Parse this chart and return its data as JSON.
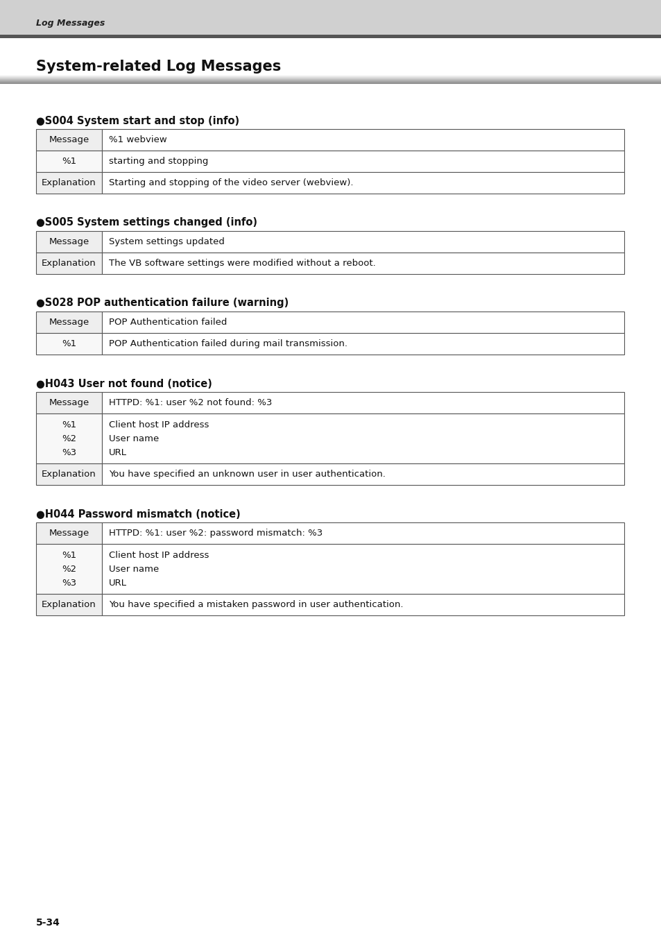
{
  "page_bg": "#ffffff",
  "header_bg": "#d0d0d0",
  "header_bar_color": "#555555",
  "header_text": "Log Messages",
  "page_title": "System-related Log Messages",
  "footer_text": "5-34",
  "sections": [
    {
      "heading": "●S004 System start and stop (info)",
      "rows": [
        {
          "col1": "Message",
          "col2": "%1 webview",
          "type": "label"
        },
        {
          "col1": "%1",
          "col2": "starting and stopping",
          "type": "data"
        },
        {
          "col1": "Explanation",
          "col2": "Starting and stopping of the video server (webview).",
          "type": "label"
        }
      ]
    },
    {
      "heading": "●S005 System settings changed (info)",
      "rows": [
        {
          "col1": "Message",
          "col2": "System settings updated",
          "type": "label"
        },
        {
          "col1": "Explanation",
          "col2": "The VB software settings were modified without a reboot.",
          "type": "label"
        }
      ]
    },
    {
      "heading": "●S028 POP authentication failure (warning)",
      "rows": [
        {
          "col1": "Message",
          "col2": "POP Authentication failed",
          "type": "label"
        },
        {
          "col1": "%1",
          "col2": "POP Authentication failed during mail transmission.",
          "type": "data"
        }
      ]
    },
    {
      "heading": "●H043 User not found (notice)",
      "rows": [
        {
          "col1": "Message",
          "col2": "HTTPD: %1: user %2 not found: %3",
          "type": "label"
        },
        {
          "col1": "%1\n%2\n%3",
          "col2": "Client host IP address\nUser name\nURL",
          "type": "multi"
        },
        {
          "col1": "Explanation",
          "col2": "You have specified an unknown user in user authentication.",
          "type": "label"
        }
      ]
    },
    {
      "heading": "●H044 Password mismatch (notice)",
      "rows": [
        {
          "col1": "Message",
          "col2": "HTTPD: %1: user %2: password mismatch: %3",
          "type": "label"
        },
        {
          "col1": "%1\n%2\n%3",
          "col2": "Client host IP address\nUser name\nURL",
          "type": "multi"
        },
        {
          "col1": "Explanation",
          "col2": "You have specified a mistaken password in user authentication.",
          "type": "label"
        }
      ]
    }
  ]
}
